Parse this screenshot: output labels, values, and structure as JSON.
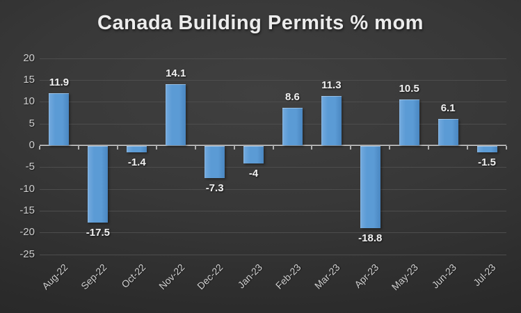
{
  "chart_data": {
    "type": "bar",
    "title": "Canada Building Permits % mom",
    "categories": [
      "Aug-22",
      "Sep-22",
      "Oct-22",
      "Nov-22",
      "Dec-22",
      "Jan-23",
      "Feb-23",
      "Mar-23",
      "Apr-23",
      "May-23",
      "Jun-23",
      "Jul-23"
    ],
    "values": [
      11.9,
      -17.5,
      -1.4,
      14.1,
      -7.3,
      -4,
      8.6,
      11.3,
      -18.8,
      10.5,
      6.1,
      -1.5
    ],
    "data_labels": [
      "11.9",
      "-17.5",
      "-1.4",
      "14.1",
      "-7.3",
      "-4",
      "8.6",
      "11.3",
      "-18.8",
      "10.5",
      "6.1",
      "-1.5"
    ],
    "xlabel": "",
    "ylabel": "",
    "ylim": [
      -25,
      20
    ],
    "yticks": [
      20,
      15,
      10,
      5,
      0,
      -5,
      -10,
      -15,
      -20,
      -25
    ],
    "grid": true,
    "legend_position": "none",
    "data_label_position": "outside-end"
  },
  "colors": {
    "bar": "#5B9BD5",
    "bar_highlight": "#74AADE",
    "bar_shadow_edge": "#4A86C0",
    "gridline": "#4D4D4D",
    "axis_line": "#B0B0B0",
    "title_text": "#ECECEC",
    "axis_text": "#CFCFCF",
    "data_label_text": "#F2F2F2",
    "background_center": "#404040",
    "background_edge": "#232323"
  }
}
